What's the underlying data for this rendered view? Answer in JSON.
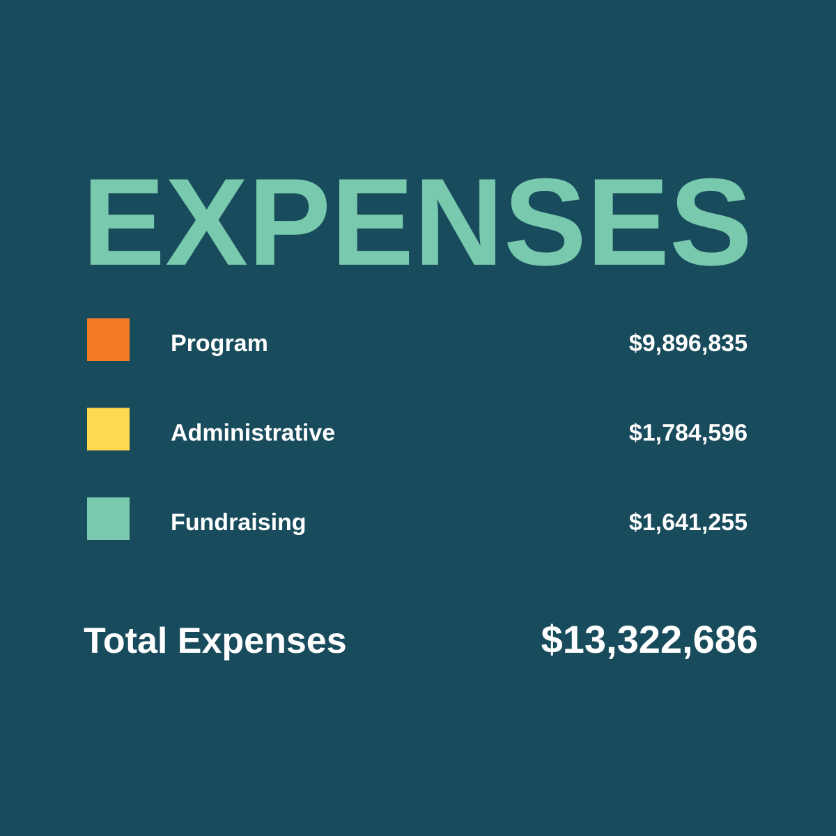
{
  "title": "EXPENSES",
  "items": [
    {
      "label": "Program",
      "amount": "$9,896,835",
      "color": "#f47a26"
    },
    {
      "label": "Administrative",
      "amount": "$1,784,596",
      "color": "#fed84e"
    },
    {
      "label": "Fundraising",
      "amount": "$1,641,255",
      "color": "#79c9ae"
    }
  ],
  "total": {
    "label": "Total Expenses",
    "amount": "$13,322,686"
  }
}
